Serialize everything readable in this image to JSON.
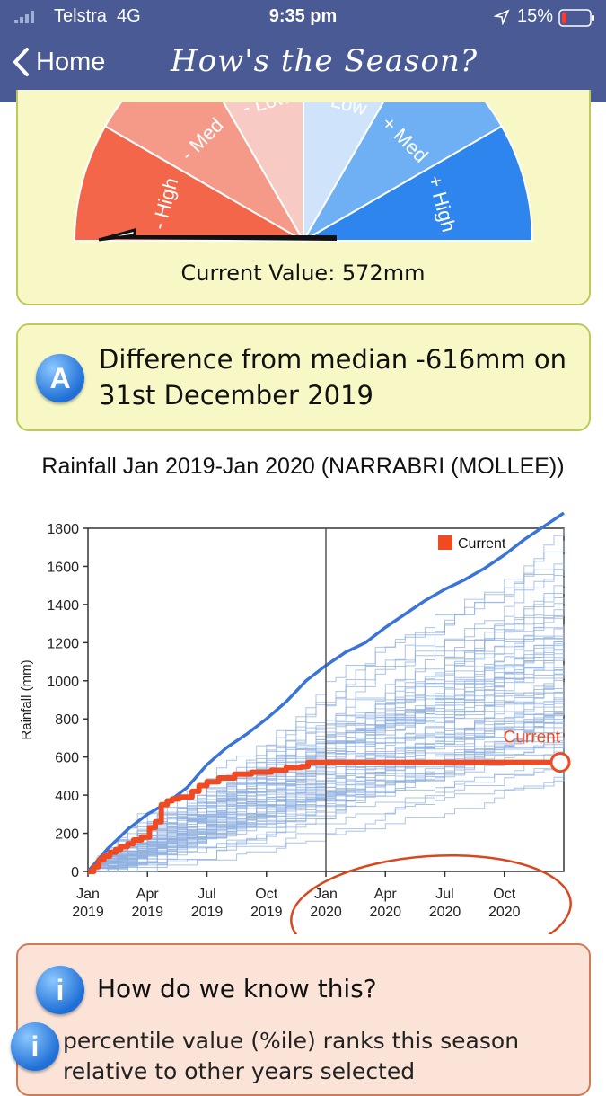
{
  "status_bar": {
    "carrier": "Telstra",
    "network": "4G",
    "time": "9:35 pm",
    "battery": "15%"
  },
  "nav": {
    "back_label": "Home",
    "title": "How's the Season?"
  },
  "gauge": {
    "segments": [
      "- High",
      "- Med",
      "- Low",
      "+ Low",
      "+ Med",
      "+ High"
    ],
    "current_value": "Current Value: 572mm"
  },
  "alert": {
    "badge": "A",
    "text": "Difference from median -616mm on 31st December 2019"
  },
  "chart_title": "Rainfall      Jan 2019-Jan 2020  (NARRABRI (MOLLEE))",
  "chart_data": {
    "type": "line",
    "ylabel": "Rainfall (mm)",
    "ylim": [
      0,
      1800
    ],
    "y_ticks": [
      "0",
      "200",
      "400",
      "600",
      "800",
      "1000",
      "1200",
      "1400",
      "1600",
      "1800"
    ],
    "x_ticks": [
      [
        "Jan",
        "2019"
      ],
      [
        "Apr",
        "2019"
      ],
      [
        "Jul",
        "2019"
      ],
      [
        "Oct",
        "2019"
      ],
      [
        "Jan",
        "2020"
      ],
      [
        "Apr",
        "2020"
      ],
      [
        "Jul",
        "2020"
      ],
      [
        "Oct",
        "2020"
      ]
    ],
    "legend": "Current",
    "annotation": "Current",
    "current_series": {
      "name": "Current",
      "color": "#f04a23",
      "points": [
        [
          0,
          0
        ],
        [
          0.6,
          25
        ],
        [
          1.1,
          60
        ],
        [
          1.6,
          80
        ],
        [
          2.2,
          100
        ],
        [
          2.8,
          115
        ],
        [
          3.3,
          130
        ],
        [
          4.0,
          145
        ],
        [
          4.6,
          165
        ],
        [
          5.4,
          180
        ],
        [
          6.2,
          230
        ],
        [
          6.8,
          260
        ],
        [
          7.4,
          350
        ],
        [
          8.0,
          370
        ],
        [
          8.5,
          380
        ],
        [
          9.2,
          390
        ],
        [
          10.5,
          420
        ],
        [
          11.2,
          450
        ],
        [
          12.0,
          470
        ],
        [
          13.2,
          490
        ],
        [
          14.8,
          510
        ],
        [
          16.5,
          520
        ],
        [
          18.5,
          530
        ],
        [
          20.0,
          545
        ],
        [
          21.5,
          550
        ],
        [
          22.2,
          572
        ]
      ]
    },
    "median_series": {
      "color": "#3b74d8",
      "points": [
        [
          0,
          0
        ],
        [
          2,
          120
        ],
        [
          4,
          220
        ],
        [
          6,
          300
        ],
        [
          8,
          360
        ],
        [
          10,
          440
        ],
        [
          12,
          560
        ],
        [
          14,
          650
        ],
        [
          16,
          720
        ],
        [
          18,
          800
        ],
        [
          20,
          890
        ],
        [
          22,
          1000
        ],
        [
          24,
          1080
        ],
        [
          26,
          1150
        ],
        [
          28,
          1200
        ],
        [
          30,
          1280
        ],
        [
          32,
          1350
        ],
        [
          34,
          1420
        ],
        [
          36,
          1480
        ],
        [
          38,
          1530
        ],
        [
          40,
          1590
        ],
        [
          42,
          1660
        ],
        [
          44,
          1740
        ],
        [
          46,
          1810
        ],
        [
          48,
          1880
        ]
      ]
    },
    "highlight_color": "#d9471e"
  },
  "info": {
    "badge": "i",
    "title": "How do we know this?",
    "body": "percentile value (%ile) ranks this season relative to other years selected"
  }
}
